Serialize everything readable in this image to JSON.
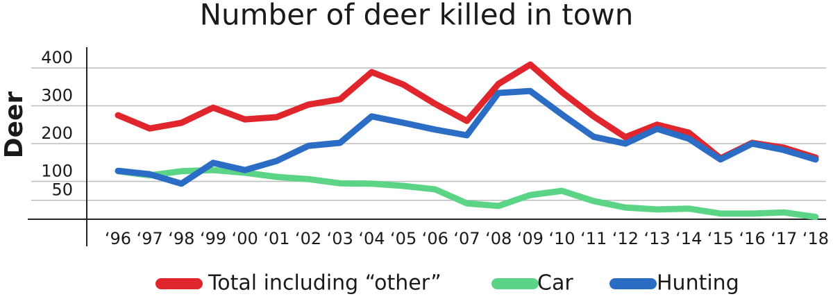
{
  "chart_data": {
    "type": "line",
    "title": "Number of deer killed in town",
    "y_label": "Deer",
    "categories": [
      "‘96",
      "‘97",
      "‘98",
      "‘99",
      "‘00",
      "‘01",
      "‘02",
      "‘03",
      "‘04",
      "‘05",
      "‘06",
      "‘07",
      "‘08",
      "‘09",
      "‘10",
      "‘11",
      "‘12",
      "‘13",
      "‘14",
      "‘15",
      "‘16",
      "‘17",
      "‘18"
    ],
    "series": [
      {
        "name": "Total including “other”",
        "color": "#e0262c",
        "values": [
          275,
          240,
          255,
          295,
          264,
          270,
          303,
          317,
          389,
          356,
          305,
          260,
          358,
          409,
          336,
          272,
          217,
          250,
          229,
          161,
          202,
          189,
          163
        ]
      },
      {
        "name": "Car",
        "color": "#5cd486",
        "values": [
          127,
          116,
          127,
          130,
          123,
          112,
          106,
          95,
          94,
          88,
          79,
          42,
          35,
          64,
          75,
          48,
          31,
          26,
          28,
          15,
          15,
          18,
          6
        ]
      },
      {
        "name": "Hunting",
        "color": "#2b6cc4",
        "values": [
          128,
          119,
          94,
          149,
          130,
          154,
          194,
          202,
          272,
          255,
          237,
          222,
          334,
          339,
          277,
          218,
          200,
          239,
          213,
          158,
          200,
          183,
          158
        ]
      }
    ],
    "ylim": [
      0,
      455
    ],
    "yticks": [
      50,
      100,
      200,
      300,
      400
    ],
    "grid": true
  }
}
